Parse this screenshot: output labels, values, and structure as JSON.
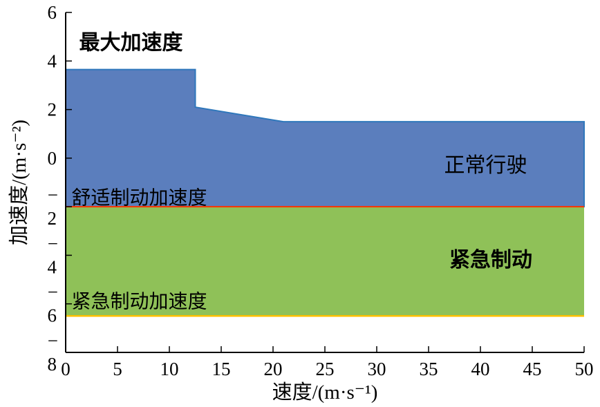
{
  "chart_data": {
    "type": "area",
    "title": "",
    "xlabel": "速度/(m·s⁻¹)",
    "ylabel": "加速度/(m·s⁻²)",
    "xlim": [
      0,
      50
    ],
    "ylim": [
      -8,
      6
    ],
    "xticks": [
      0,
      5,
      10,
      15,
      20,
      25,
      30,
      35,
      40,
      45,
      50
    ],
    "yticks": [
      -8,
      -6,
      -4,
      -2,
      0,
      2,
      4,
      6
    ],
    "grid": false,
    "legend": "none",
    "max_acceleration_curve": {
      "points": [
        [
          0,
          3.65
        ],
        [
          12.5,
          3.65
        ],
        [
          12.5,
          2.1
        ],
        [
          21,
          1.5
        ],
        [
          50,
          1.5
        ]
      ]
    },
    "comfort_brake_level": -2,
    "emergency_brake_level": -6.5,
    "regions": [
      {
        "name": "normal-driving-region",
        "label": "正常行驶",
        "y_from": -2,
        "y_to": "max_acceleration_curve",
        "fill": "#5b7ebd",
        "edge": "#2e77bb"
      },
      {
        "name": "emergency-braking-region",
        "label": "紧急制动",
        "y_from": -6.5,
        "y_to": -2,
        "fill": "#8fc158",
        "edge": "none"
      }
    ],
    "lines": [
      {
        "name": "comfort-brake-line",
        "y": -2,
        "color": "#ff3300",
        "width": 2
      },
      {
        "name": "emergency-brake-line",
        "y": -6.5,
        "color": "#ffc000",
        "width": 2.5
      }
    ],
    "annotations": [
      {
        "name": "max-acceleration-label",
        "text": "最大加速度",
        "x": 1.3,
        "y": 4.75,
        "color": "#000000",
        "bold": true,
        "align": "start",
        "size": 30
      },
      {
        "name": "normal-driving-label",
        "text": "正常行驶",
        "x": 40.5,
        "y": -0.3,
        "color": "#6e86a6",
        "bold": false,
        "align": "middle",
        "size": 30
      },
      {
        "name": "comfort-brake-label",
        "text": "舒适制动加速度",
        "x": 7.1,
        "y": -1.65,
        "color": "#7b8ca6",
        "bold": false,
        "align": "middle",
        "size": 28
      },
      {
        "name": "emergency-braking-label",
        "text": "紧急制动",
        "x": 41,
        "y": -4.2,
        "color": "#ff0000",
        "bold": true,
        "align": "middle",
        "size": 30
      },
      {
        "name": "emergency-brake-label",
        "text": "紧急制动加速度",
        "x": 7.1,
        "y": -5.92,
        "color": "#74a048",
        "bold": false,
        "align": "middle",
        "size": 28
      }
    ]
  }
}
